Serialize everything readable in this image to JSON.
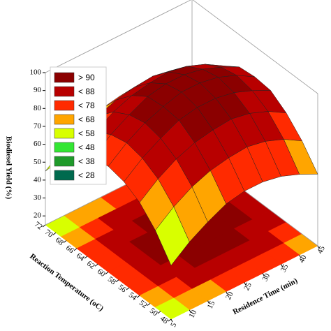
{
  "chart_data": {
    "type": "surface",
    "z_label": "Biodiesel Yield (%)",
    "y_label": "Reaction Temperature (oC)",
    "x_label": "Residence Time (min)",
    "x": [
      5,
      10,
      15,
      20,
      25,
      30,
      35,
      40,
      45
    ],
    "y": [
      48,
      51,
      54,
      57,
      60,
      63,
      66,
      69,
      72
    ],
    "z": [
      [
        45,
        53,
        59,
        64,
        66,
        66,
        64,
        60,
        55
      ],
      [
        58,
        66,
        72,
        76,
        78,
        79,
        77,
        73,
        67
      ],
      [
        67,
        75,
        81,
        85,
        87,
        88,
        86,
        82,
        76
      ],
      [
        72,
        80,
        86,
        91,
        93,
        93,
        91,
        87,
        82
      ],
      [
        74,
        82,
        88,
        92,
        95,
        95,
        93,
        89,
        83
      ],
      [
        72,
        80,
        86,
        91,
        93,
        93,
        91,
        87,
        82
      ],
      [
        67,
        75,
        81,
        85,
        87,
        88,
        86,
        82,
        76
      ],
      [
        58,
        66,
        72,
        76,
        78,
        79,
        77,
        73,
        67
      ],
      [
        45,
        53,
        59,
        64,
        66,
        66,
        64,
        60,
        55
      ]
    ],
    "xlim": [
      5,
      45
    ],
    "ylim": [
      48,
      72
    ],
    "zlim": [
      15,
      100
    ],
    "xticks": [
      5,
      10,
      15,
      20,
      25,
      30,
      35,
      40,
      45
    ],
    "yticks": [
      48,
      50,
      52,
      54,
      56,
      58,
      60,
      62,
      64,
      66,
      68,
      70,
      72
    ],
    "zticks": [
      20,
      30,
      40,
      50,
      60,
      70,
      80,
      90,
      100
    ],
    "legend": [
      {
        "value": 90,
        "label": "> 90",
        "color": "#8b0000"
      },
      {
        "value": 88,
        "label": "< 88",
        "color": "#b80000"
      },
      {
        "value": 78,
        "label": "< 78",
        "color": "#ff2a00"
      },
      {
        "value": 68,
        "label": "< 68",
        "color": "#ffa500"
      },
      {
        "value": 58,
        "label": "< 58",
        "color": "#d8ff00"
      },
      {
        "value": 48,
        "label": "< 48",
        "color": "#33e633"
      },
      {
        "value": 38,
        "label": "< 38",
        "color": "#1f9a2a"
      },
      {
        "value": 28,
        "label": "< 28",
        "color": "#006a4e"
      }
    ]
  }
}
